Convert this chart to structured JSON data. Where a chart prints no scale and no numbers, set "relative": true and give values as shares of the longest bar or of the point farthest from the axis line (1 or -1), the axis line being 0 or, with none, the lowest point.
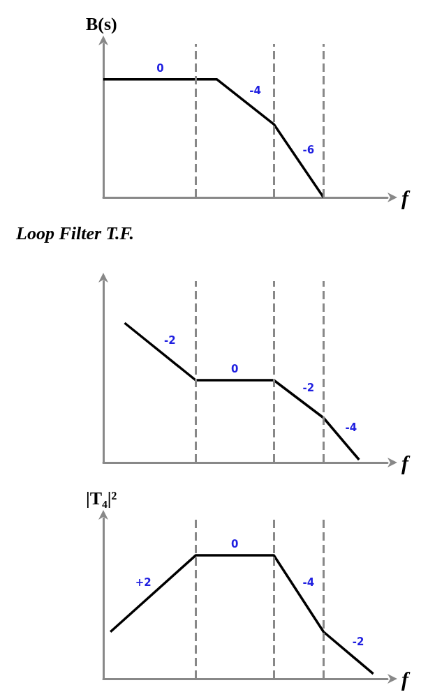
{
  "chart_data": [
    {
      "type": "line",
      "title": "B(s)",
      "xlabel": "f",
      "relative": true,
      "grid": "x",
      "marker": "none",
      "line_style": "solid",
      "categories": [
        null,
        null,
        null,
        null,
        null,
        null,
        null,
        null,
        null,
        null,
        null,
        null,
        null,
        null,
        null,
        null,
        null,
        null,
        null,
        null,
        null,
        null,
        null,
        null,
        null,
        null,
        null,
        null,
        null,
        null,
        null,
        null,
        null,
        null,
        null,
        null,
        null,
        null,
        null,
        null,
        null
      ],
      "series": [
        {
          "color": "#000000",
          "values": [
            1,
            null,
            null,
            null,
            null,
            null,
            null,
            null,
            null,
            null,
            null,
            null,
            null,
            null,
            null,
            null,
            1,
            null,
            null,
            null,
            null,
            null,
            null,
            null,
            0.62,
            null,
            null,
            null,
            null,
            null,
            null,
            0,
            null,
            null,
            null,
            null,
            null,
            null,
            null,
            null,
            null
          ]
        }
      ],
      "annotations": [
        "0",
        "-4",
        "-6"
      ]
    },
    {
      "type": "line",
      "title": "Loop Filter T.F.",
      "xlabel": "f",
      "relative": true,
      "grid": "x",
      "marker": "none",
      "line_style": "solid",
      "categories": [
        null,
        null,
        null,
        null,
        null,
        null,
        null,
        null,
        null,
        null,
        null,
        null,
        null,
        null,
        null,
        null,
        null,
        null,
        null,
        null,
        null,
        null,
        null,
        null,
        null,
        null,
        null,
        null,
        null,
        null,
        null,
        null,
        null,
        null,
        null,
        null,
        null,
        null,
        null,
        null,
        null
      ],
      "series": [
        {
          "color": "#000000",
          "values": [
            null,
            null,
            null,
            1,
            null,
            null,
            null,
            null,
            null,
            null,
            null,
            null,
            null,
            0.59,
            null,
            null,
            null,
            null,
            null,
            null,
            null,
            null,
            null,
            null,
            0.59,
            null,
            null,
            null,
            null,
            null,
            null,
            0.32,
            null,
            null,
            null,
            null,
            0.02,
            null,
            null,
            null,
            null
          ]
        }
      ],
      "annotations": [
        "-2",
        "0",
        "-2",
        "-4"
      ]
    },
    {
      "type": "line",
      "title": "|T₄|²",
      "xlabel": "f",
      "relative": true,
      "grid": "x",
      "marker": "none",
      "line_style": "solid",
      "categories": [
        null,
        null,
        null,
        null,
        null,
        null,
        null,
        null,
        null,
        null,
        null,
        null,
        null,
        null,
        null,
        null,
        null,
        null,
        null,
        null,
        null,
        null,
        null,
        null,
        null,
        null,
        null,
        null,
        null,
        null,
        null,
        null,
        null,
        null,
        null,
        null,
        null,
        null,
        null,
        null,
        null
      ],
      "series": [
        {
          "color": "#000000",
          "values": [
            null,
            0.38,
            null,
            null,
            null,
            null,
            null,
            null,
            null,
            null,
            null,
            null,
            null,
            1,
            null,
            null,
            null,
            null,
            null,
            null,
            null,
            null,
            null,
            null,
            1,
            null,
            null,
            null,
            null,
            null,
            null,
            0.38,
            null,
            null,
            null,
            null,
            null,
            null,
            0.04,
            null,
            null
          ]
        }
      ],
      "annotations": [
        "+2",
        "0",
        "-4",
        "-2"
      ]
    }
  ]
}
